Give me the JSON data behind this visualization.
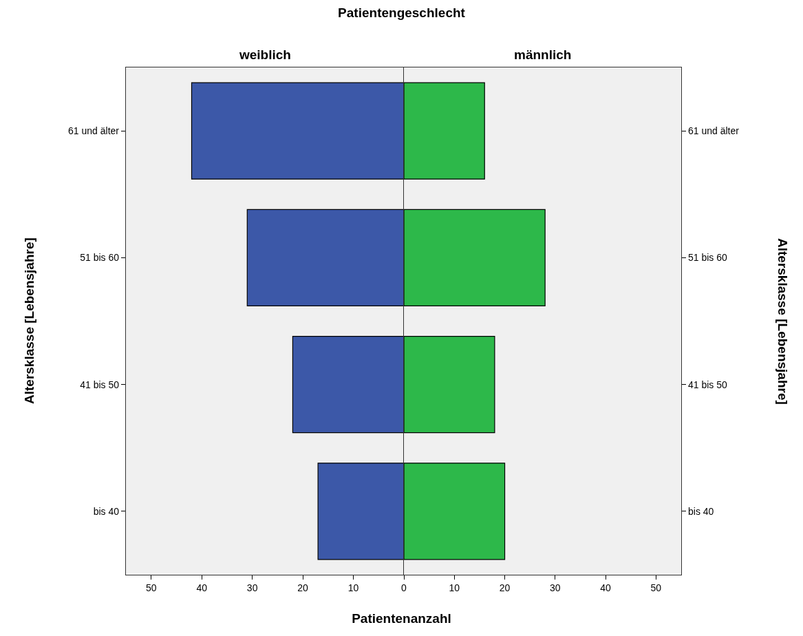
{
  "chart_data": [
    {
      "type": "bar",
      "orientation": "horizontal",
      "title": "Patientengeschlecht",
      "subtitle": "weiblich",
      "xlabel": "Patientenanzahl",
      "ylabel": "Altersklasse [Lebensjahre]",
      "categories": [
        "61 und älter",
        "51 bis 60",
        "41 bis 50",
        "bis 40"
      ],
      "values": [
        42,
        31,
        22,
        17
      ],
      "color": "#3c58a8",
      "xlim": [
        55,
        0
      ],
      "xticks": [
        50,
        40,
        30,
        20,
        10
      ]
    },
    {
      "type": "bar",
      "orientation": "horizontal",
      "subtitle": "männlich",
      "ylabel": "Altersklasse [Lebensjahre]",
      "categories": [
        "61 und älter",
        "51 bis 60",
        "41 bis 50",
        "bis 40"
      ],
      "values": [
        16,
        28,
        18,
        20
      ],
      "color": "#2db84a",
      "xlim": [
        0,
        55
      ],
      "xticks": [
        0,
        10,
        20,
        30,
        40,
        50
      ]
    }
  ]
}
